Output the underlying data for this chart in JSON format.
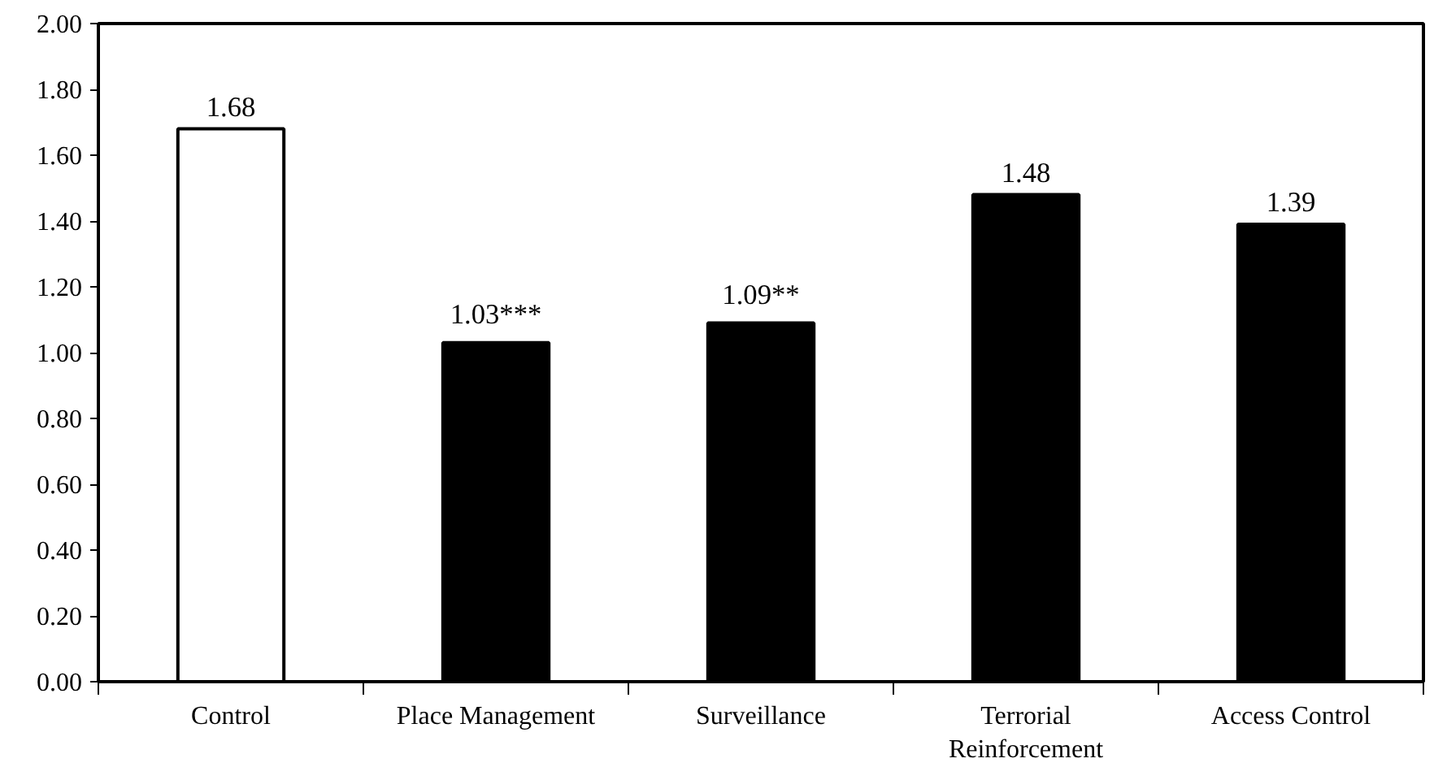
{
  "chart_data": {
    "type": "bar",
    "categories": [
      "Control",
      "Place Management",
      "Surveillance",
      "Terrorial Reinforcement",
      "Access Control"
    ],
    "values": [
      1.68,
      1.03,
      1.09,
      1.48,
      1.39
    ],
    "colors": [
      "#ffffff",
      "#000000",
      "#000000",
      "#000000",
      "#000000"
    ],
    "value_labels": [
      "1.68",
      "1.03***",
      "1.09**",
      "1.48",
      "1.39"
    ],
    "ylim": [
      0,
      2
    ],
    "yticks": [
      {
        "value": 0,
        "label": "0.00"
      },
      {
        "value": 0.2,
        "label": "0.20"
      },
      {
        "value": 0.4,
        "label": "0.40"
      },
      {
        "value": 0.6,
        "label": "0.60"
      },
      {
        "value": 0.8,
        "label": "0.80"
      },
      {
        "value": 1,
        "label": "1.00"
      },
      {
        "value": 1.2,
        "label": "1.20"
      },
      {
        "value": 1.4,
        "label": "1.40"
      },
      {
        "value": 1.6,
        "label": "1.60"
      },
      {
        "value": 1.8,
        "label": "1.80"
      },
      {
        "value": 2,
        "label": "2.00"
      }
    ],
    "grid": false
  }
}
